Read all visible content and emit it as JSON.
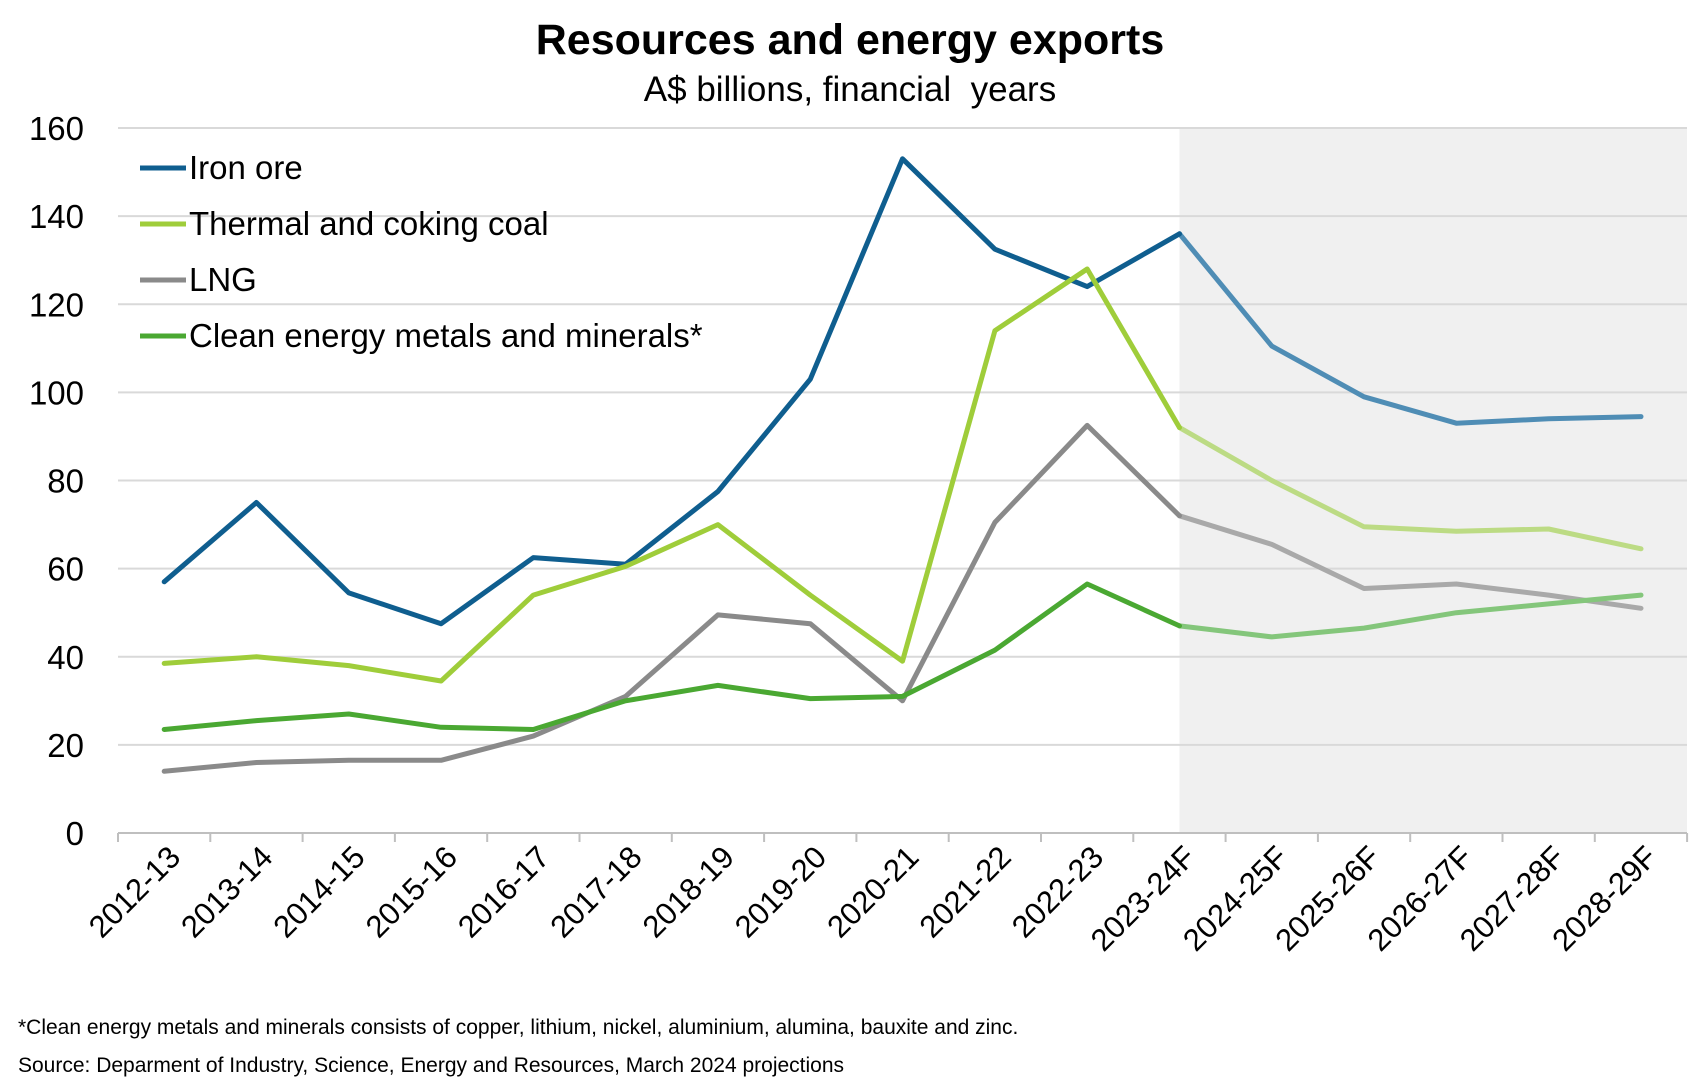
{
  "chart_data": {
    "type": "line",
    "title": "Resources and energy exports",
    "subtitle": "A$ billions, financial  years",
    "ylim": [
      0,
      160
    ],
    "yticks": [
      0,
      20,
      40,
      60,
      80,
      100,
      120,
      140,
      160
    ],
    "grid": true,
    "legend_position": "top-left",
    "forecast_start": "2023-24F",
    "forecast_shading": "#f0f0f0",
    "categories": [
      "2012-13",
      "2013-14",
      "2014-15",
      "2015-16",
      "2016-17",
      "2017-18",
      "2018-19",
      "2019-20",
      "2020-21",
      "2021-22",
      "2022-23",
      "2023-24F",
      "2024-25F",
      "2025-26F",
      "2026-27F",
      "2027-28F",
      "2028-29F"
    ],
    "series": [
      {
        "name": "Iron ore",
        "color": "#0f5e8f",
        "forecast_color": "#4f8db5",
        "values": [
          57,
          75,
          54.5,
          47.5,
          62.5,
          61,
          77.5,
          103,
          153,
          132.5,
          124,
          136,
          110.5,
          99,
          93,
          94,
          94.5
        ]
      },
      {
        "name": "Thermal and coking coal",
        "color": "#9fcd3a",
        "forecast_color": "#bcdb84",
        "values": [
          38.5,
          40,
          38,
          34.5,
          54,
          60.5,
          70,
          54,
          39,
          114,
          128,
          92,
          80,
          69.5,
          68.5,
          69,
          64.5
        ]
      },
      {
        "name": "LNG",
        "color": "#8a8a8a",
        "forecast_color": "#a9a9a9",
        "values": [
          14,
          16,
          16.5,
          16.5,
          22,
          31,
          49.5,
          47.5,
          30,
          70.5,
          92.5,
          72,
          65.5,
          55.5,
          56.5,
          54,
          51
        ]
      },
      {
        "name": "Clean energy metals and minerals*",
        "color": "#4aa832",
        "forecast_color": "#84c67b",
        "values": [
          23.5,
          25.5,
          27,
          24,
          23.5,
          30,
          33.5,
          30.5,
          31,
          41.5,
          56.5,
          47,
          44.5,
          46.5,
          50,
          52,
          54
        ]
      }
    ]
  },
  "footnotes": {
    "note": "*Clean energy metals and minerals consists of copper, lithium, nickel, aluminium, alumina, bauxite and zinc.",
    "source": "Source: Deparment of Industry, Science, Energy and Resources, March 2024 projections"
  }
}
